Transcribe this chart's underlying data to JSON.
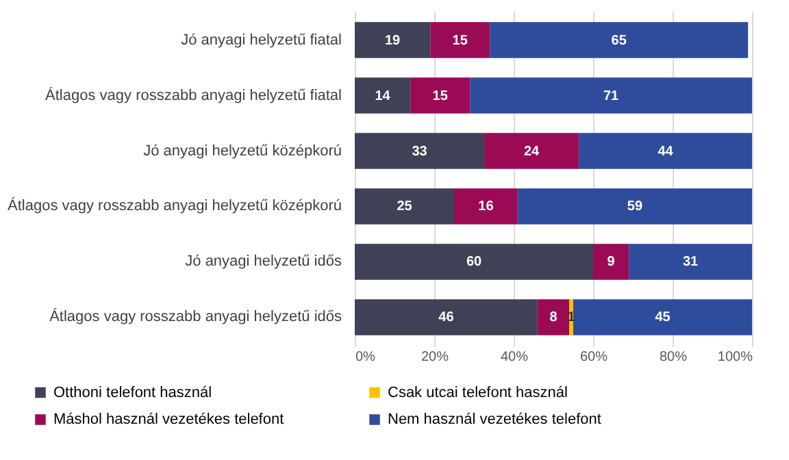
{
  "chart_data": {
    "type": "bar",
    "orientation": "horizontal",
    "stacked": true,
    "data_labels": true,
    "grid": "x",
    "legend": "bottom",
    "categories": [
      "Jó anyagi helyzetű fiatal",
      "Átlagos vagy rosszabb anyagi helyzetű fiatal",
      "Jó anyagi helyzetű középkorú",
      "Átlagos vagy rosszabb anyagi helyzetű középkorú",
      "Jó anyagi helyzetű idős",
      "Átlagos vagy rosszabb anyagi helyzetű idős"
    ],
    "series": [
      {
        "name": "Otthoni telefont használ",
        "color": "#3f4156",
        "values": [
          19,
          14,
          32.6,
          25,
          60,
          46
        ],
        "value_labels": [
          "19",
          "14",
          "33",
          "25",
          "60",
          "46"
        ]
      },
      {
        "name": "Máshol használ vezetékes telefont",
        "color": "#9b0b55",
        "values": [
          15,
          15,
          23.8,
          16,
          9,
          8
        ],
        "value_labels": [
          "15",
          "15",
          "24",
          "16",
          "9",
          "8"
        ]
      },
      {
        "name": "Csak utcai telefont használ",
        "color": "#ffc000",
        "values": [
          null,
          null,
          null,
          null,
          null,
          1
        ]
      },
      {
        "name": "Nem használ vezetékes telefont",
        "color": "#2f4b9c",
        "values": [
          65,
          71,
          43.6,
          59,
          31,
          45
        ],
        "value_labels": [
          "65",
          "71",
          "44",
          "59",
          "31",
          "45"
        ]
      }
    ],
    "xlim": [
      0,
      100
    ],
    "xticks": [
      {
        "value": 0,
        "label": "0%"
      },
      {
        "value": 20,
        "label": "20%"
      },
      {
        "value": 40,
        "label": "40%"
      },
      {
        "value": 60,
        "label": "60%"
      },
      {
        "value": 80,
        "label": "80%"
      },
      {
        "value": 100,
        "label": "100%"
      }
    ]
  }
}
